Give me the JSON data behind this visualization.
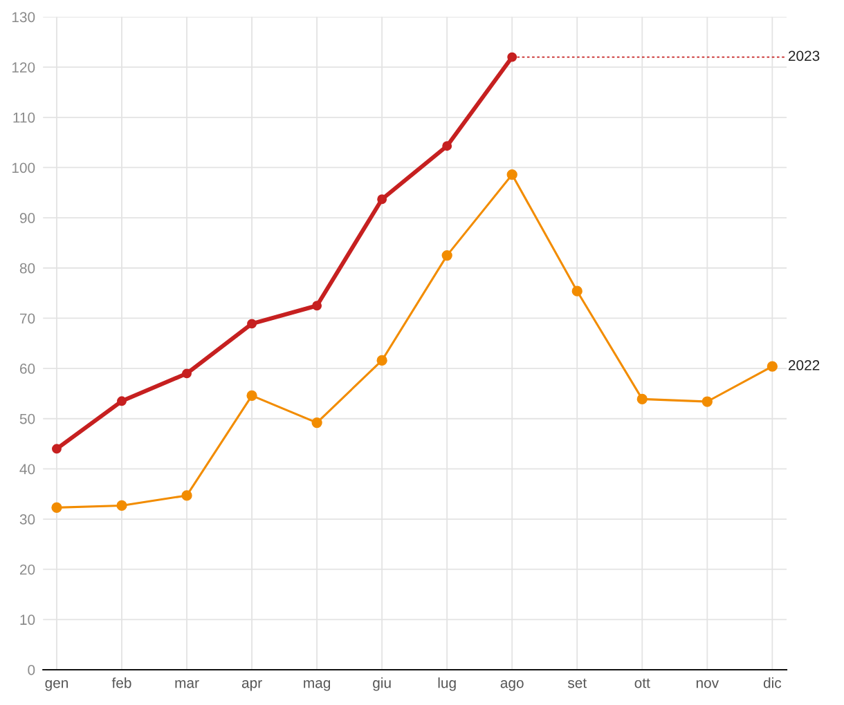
{
  "chart_data": {
    "type": "line",
    "categories": [
      "gen",
      "feb",
      "mar",
      "apr",
      "mag",
      "giu",
      "lug",
      "ago",
      "set",
      "ott",
      "nov",
      "dic"
    ],
    "series": [
      {
        "name": "2022",
        "color": "#f28c00",
        "values": [
          32.3,
          32.7,
          34.7,
          54.6,
          49.2,
          61.6,
          82.5,
          98.6,
          75.4,
          53.9,
          53.4,
          60.4
        ]
      },
      {
        "name": "2023",
        "color": "#c62020",
        "values": [
          44.0,
          53.5,
          59.0,
          68.9,
          72.5,
          93.7,
          104.3,
          122.0,
          null,
          null,
          null,
          null
        ]
      }
    ],
    "ylim": [
      0,
      130
    ],
    "yticks": [
      0,
      10,
      20,
      30,
      40,
      50,
      60,
      70,
      80,
      90,
      100,
      110,
      120,
      130
    ],
    "grid": true,
    "marker": "circle",
    "line_style": "solid",
    "legend": false
  }
}
